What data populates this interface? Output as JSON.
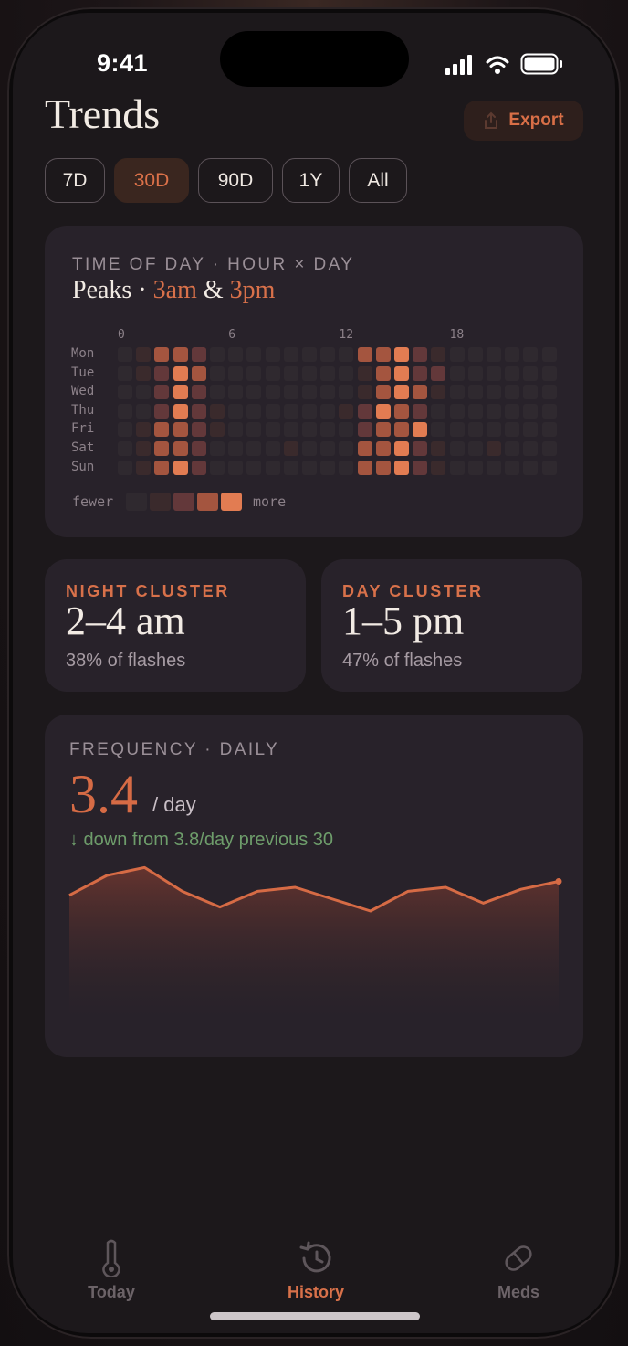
{
  "status": {
    "time": "9:41"
  },
  "header": {
    "title": "Trends",
    "export_label": "Export"
  },
  "ranges": [
    {
      "label": "7D",
      "active": false
    },
    {
      "label": "30D",
      "active": true
    },
    {
      "label": "90D",
      "active": false
    },
    {
      "label": "1Y",
      "active": false
    },
    {
      "label": "All",
      "active": false
    }
  ],
  "heatmap": {
    "eyebrow": "TIME OF DAY · HOUR × DAY",
    "peaks_prefix": "Peaks ·",
    "peak1": "3am",
    "amp": "&",
    "peak2": "3pm",
    "hour_labels": [
      "0",
      "6",
      "12",
      "18"
    ],
    "days": [
      "Mon",
      "Tue",
      "Wed",
      "Thu",
      "Fri",
      "Sat",
      "Sun"
    ],
    "levels": [
      [
        0,
        1,
        3,
        3,
        2,
        0,
        0,
        0,
        0,
        0,
        0,
        0,
        0,
        3,
        3,
        4,
        2,
        1,
        0,
        0,
        0,
        0,
        0,
        0
      ],
      [
        0,
        1,
        2,
        4,
        3,
        0,
        0,
        0,
        0,
        0,
        0,
        0,
        0,
        1,
        3,
        4,
        2,
        2,
        0,
        0,
        0,
        0,
        0,
        0
      ],
      [
        0,
        0,
        2,
        4,
        2,
        0,
        0,
        0,
        0,
        0,
        0,
        0,
        0,
        1,
        3,
        4,
        3,
        1,
        0,
        0,
        0,
        0,
        0,
        0
      ],
      [
        0,
        0,
        2,
        4,
        2,
        1,
        0,
        0,
        0,
        0,
        0,
        0,
        1,
        2,
        4,
        3,
        2,
        0,
        0,
        0,
        0,
        0,
        0,
        0
      ],
      [
        0,
        1,
        3,
        3,
        2,
        1,
        0,
        0,
        0,
        0,
        0,
        0,
        0,
        2,
        3,
        3,
        4,
        0,
        0,
        0,
        0,
        0,
        0,
        0
      ],
      [
        0,
        1,
        3,
        3,
        2,
        0,
        0,
        0,
        0,
        1,
        0,
        0,
        0,
        3,
        3,
        4,
        2,
        1,
        0,
        0,
        1,
        0,
        0,
        0
      ],
      [
        0,
        1,
        3,
        4,
        2,
        0,
        0,
        0,
        0,
        0,
        0,
        0,
        0,
        3,
        3,
        4,
        2,
        1,
        0,
        0,
        0,
        0,
        0,
        0
      ]
    ],
    "palette": [
      "#2f292f",
      "#3a2a2c",
      "#63383a",
      "#a4553f",
      "#e27c52"
    ],
    "legend_fewer": "fewer",
    "legend_more": "more"
  },
  "clusters": [
    {
      "eyebrow": "NIGHT CLUSTER",
      "value": "2–4 am",
      "pct": "38% of flashes"
    },
    {
      "eyebrow": "DAY CLUSTER",
      "value": "1–5 pm",
      "pct": "47% of flashes"
    }
  ],
  "frequency": {
    "eyebrow": "FREQUENCY · DAILY",
    "value": "3.4",
    "unit": "/ day",
    "trend": "↓ down from 3.8/day previous 30"
  },
  "chart_data": {
    "type": "area",
    "series": [
      {
        "values": [
          3.4,
          3.9,
          4.1,
          3.5,
          3.1,
          3.5,
          3.6,
          3.3,
          3.0,
          3.5,
          3.6,
          3.2,
          3.55,
          3.75
        ]
      }
    ],
    "ylim": [
      0,
      4.5
    ],
    "color": "#d66b45"
  },
  "tabs": [
    {
      "label": "Today",
      "icon": "thermometer-icon",
      "active": false
    },
    {
      "label": "History",
      "icon": "history-icon",
      "active": true
    },
    {
      "label": "Meds",
      "icon": "pill-icon",
      "active": false
    }
  ]
}
